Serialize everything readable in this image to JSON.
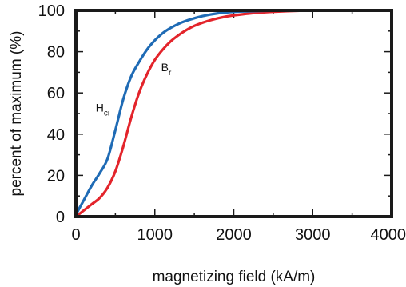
{
  "chart_data": {
    "type": "line",
    "xlabel": "magnetizing field (kA/m)",
    "ylabel": "percent of maximum (%)",
    "xlim": [
      0,
      4000
    ],
    "ylim": [
      0,
      100
    ],
    "x_ticks": [
      "0",
      "1000",
      "2000",
      "3000",
      "4000"
    ],
    "y_ticks": [
      "0",
      "20",
      "40",
      "60",
      "80",
      "100"
    ],
    "grid": false,
    "series": [
      {
        "name": "H",
        "name_sub": "ci",
        "color": "#1f6bb5",
        "x": [
          0,
          100,
          200,
          300,
          400,
          500,
          600,
          700,
          800,
          900,
          1000,
          1100,
          1200,
          1300,
          1400,
          1500,
          1600,
          1700,
          1800,
          1900,
          2000,
          2200,
          2400,
          2600,
          2800,
          3000,
          3100
        ],
        "y": [
          1,
          8,
          15,
          21,
          28,
          42,
          57,
          68,
          75,
          81,
          85.5,
          89,
          91.5,
          93.5,
          95,
          96.2,
          97.2,
          98,
          98.6,
          99,
          99.3,
          99.6,
          99.8,
          99.9,
          100,
          100,
          100
        ]
      },
      {
        "name": "B",
        "name_sub": "r",
        "color": "#e3242b",
        "x": [
          0,
          100,
          200,
          300,
          400,
          500,
          600,
          700,
          800,
          900,
          1000,
          1100,
          1200,
          1300,
          1400,
          1500,
          1600,
          1700,
          1800,
          1900,
          2000,
          2200,
          2400,
          2600,
          2800,
          3000,
          3100
        ],
        "y": [
          0,
          3,
          6,
          9,
          14,
          22,
          34,
          48,
          60,
          69,
          76,
          81,
          85,
          88,
          90.5,
          92.5,
          94,
          95.2,
          96.2,
          97,
          97.6,
          98.5,
          99.1,
          99.5,
          99.8,
          100,
          100
        ]
      }
    ]
  }
}
